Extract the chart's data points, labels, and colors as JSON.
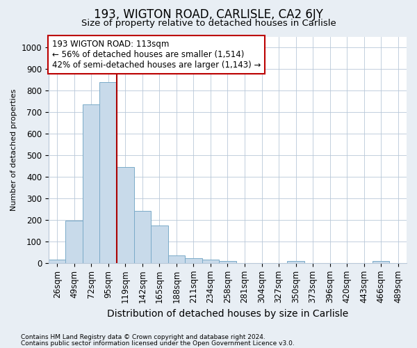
{
  "title": "193, WIGTON ROAD, CARLISLE, CA2 6JY",
  "subtitle": "Size of property relative to detached houses in Carlisle",
  "xlabel": "Distribution of detached houses by size in Carlisle",
  "ylabel": "Number of detached properties",
  "categories": [
    "26sqm",
    "49sqm",
    "72sqm",
    "95sqm",
    "119sqm",
    "142sqm",
    "165sqm",
    "188sqm",
    "211sqm",
    "234sqm",
    "258sqm",
    "281sqm",
    "304sqm",
    "327sqm",
    "350sqm",
    "373sqm",
    "396sqm",
    "420sqm",
    "443sqm",
    "466sqm",
    "489sqm"
  ],
  "values": [
    15,
    195,
    735,
    840,
    445,
    240,
    175,
    35,
    22,
    15,
    8,
    0,
    0,
    0,
    8,
    0,
    0,
    0,
    0,
    8,
    0
  ],
  "bar_color": "#c8daea",
  "bar_edge_color": "#7aaac8",
  "vline_color": "#aa0000",
  "vline_index": 4,
  "annotation_line1": "193 WIGTON ROAD: 113sqm",
  "annotation_line2": "← 56% of detached houses are smaller (1,514)",
  "annotation_line3": "42% of semi-detached houses are larger (1,143) →",
  "annotation_box_color": "#ffffff",
  "annotation_box_edge_color": "#bb0000",
  "ylim": [
    0,
    1050
  ],
  "yticks": [
    0,
    100,
    200,
    300,
    400,
    500,
    600,
    700,
    800,
    900,
    1000
  ],
  "footer1": "Contains HM Land Registry data © Crown copyright and database right 2024.",
  "footer2": "Contains public sector information licensed under the Open Government Licence v3.0.",
  "bg_color": "#e8eef4",
  "plot_bg_color": "#ffffff",
  "grid_color": "#b8c8d8",
  "title_fontsize": 12,
  "subtitle_fontsize": 9.5,
  "xlabel_fontsize": 10,
  "ylabel_fontsize": 8,
  "tick_fontsize": 8.5,
  "footer_fontsize": 6.5
}
